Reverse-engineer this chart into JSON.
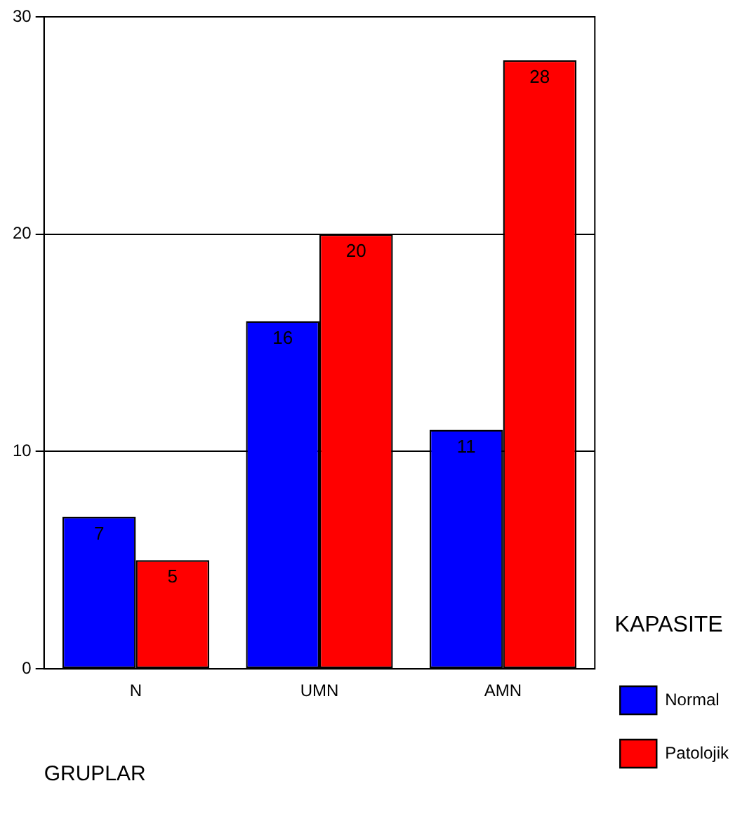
{
  "chart_data": {
    "type": "bar",
    "xlabel": "GRUPLAR",
    "legend_title": "KAPASITE",
    "categories": [
      "N",
      "UMN",
      "AMN"
    ],
    "series": [
      {
        "name": "Normal",
        "color": "#0000ff",
        "values": [
          7,
          16,
          11
        ]
      },
      {
        "name": "Patolojik",
        "color": "#ff0000",
        "values": [
          5,
          20,
          28
        ]
      }
    ],
    "ylim": [
      0,
      30
    ],
    "yticks": [
      0,
      10,
      20,
      30
    ],
    "grid": "y",
    "legend": "right",
    "data_labels": true
  }
}
